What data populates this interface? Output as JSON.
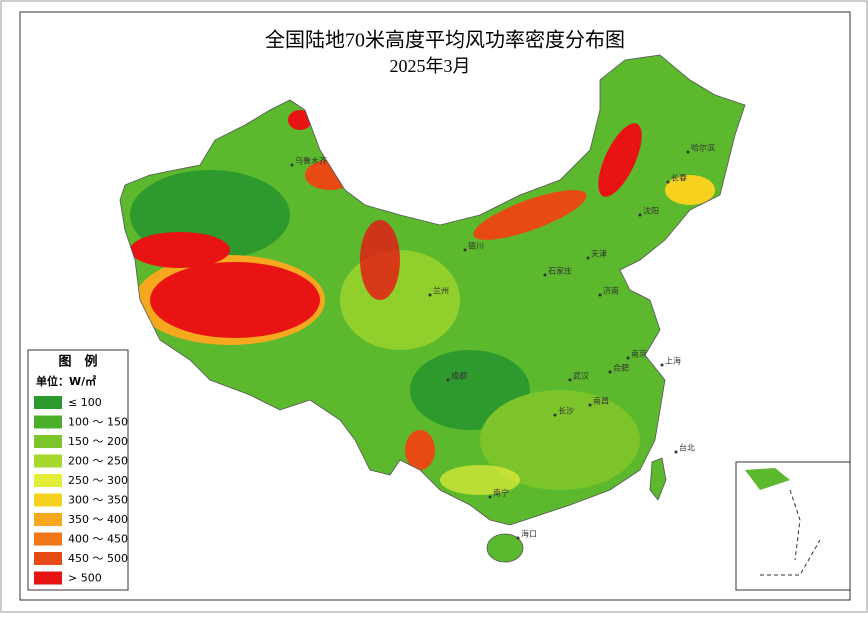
{
  "title": "全国陆地70米高度平均风功率密度分布图",
  "subtitle": "2025年3月",
  "legend": {
    "title": "图　例",
    "unit": "单位：W/㎡",
    "items": [
      {
        "label": "≤ 100",
        "color": "#2e9a2e"
      },
      {
        "label": "100 ～ 150",
        "color": "#4caf2a"
      },
      {
        "label": "150 ～ 200",
        "color": "#7cc42a"
      },
      {
        "label": "200 ～ 250",
        "color": "#a8d82e"
      },
      {
        "label": "250 ～ 300",
        "color": "#e4ee3a"
      },
      {
        "label": "300 ～ 350",
        "color": "#f6d21e"
      },
      {
        "label": "350 ～ 400",
        "color": "#f6a81e"
      },
      {
        "label": "400 ～ 450",
        "color": "#f07818"
      },
      {
        "label": "450 ～ 500",
        "color": "#e84a14"
      },
      {
        "label": "> 500",
        "color": "#e81414"
      }
    ]
  },
  "cities": [
    "乌鲁木齐",
    "哈尔滨",
    "长春",
    "沈阳",
    "天津",
    "石家庄",
    "济南",
    "南京",
    "上海",
    "合肥",
    "成都",
    "武汉",
    "长沙",
    "南昌",
    "台北",
    "南宁",
    "海口",
    "兰州",
    "银川"
  ]
}
